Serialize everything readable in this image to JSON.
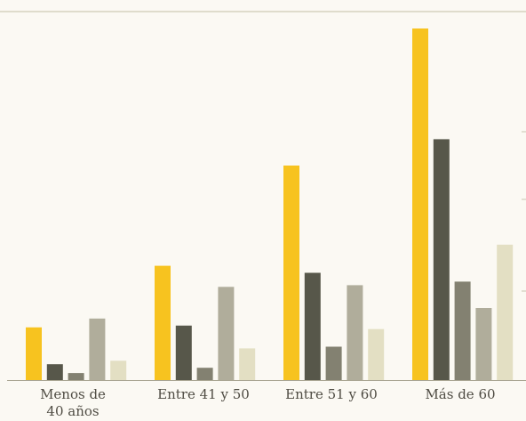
{
  "chart_data": {
    "type": "bar",
    "title": "",
    "xlabel": "",
    "ylabel": "",
    "ylim": [
      0,
      100
    ],
    "grid": false,
    "categories": [
      [
        "Menos de",
        "40 años"
      ],
      [
        "Entre 41 y 50"
      ],
      [
        "Entre 51 y 60"
      ],
      [
        "Más de 60"
      ]
    ],
    "series": [
      {
        "color": "#f7c31f",
        "values": [
          15,
          32.5,
          61,
          100
        ]
      },
      {
        "color": "#57574a",
        "values": [
          4.5,
          15.5,
          30.5,
          68.5
        ]
      },
      {
        "color": "#838171",
        "values": [
          2,
          3.5,
          9.5,
          28
        ]
      },
      {
        "color": "#b0ad9b",
        "values": [
          17.5,
          26.5,
          27,
          20.5
        ]
      },
      {
        "color": "#e3dfc3",
        "values": [
          5.5,
          9,
          14.5,
          38.5
        ]
      }
    ]
  }
}
